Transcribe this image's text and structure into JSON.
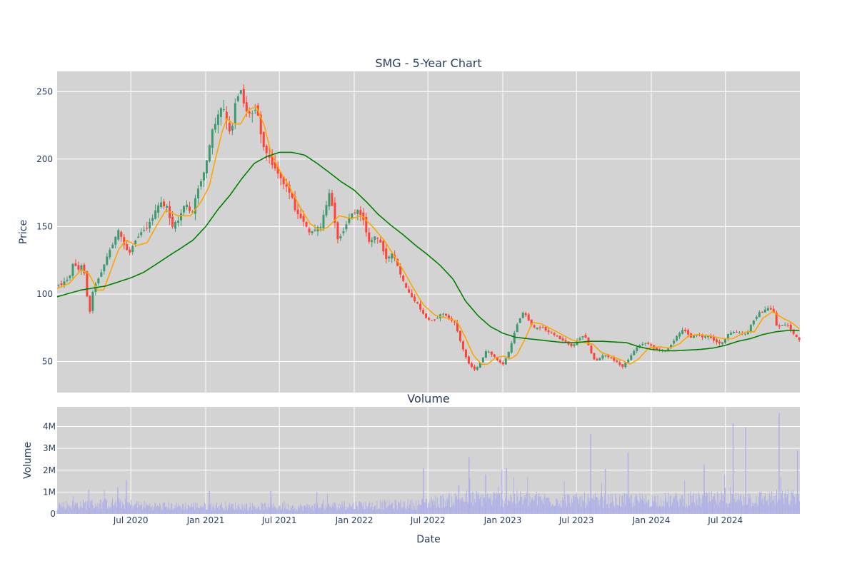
{
  "chart_data": [
    {
      "type": "candlestick",
      "title": "SMG - 5-Year Chart",
      "xlabel": "",
      "ylabel": "Price",
      "ylim": [
        27,
        265
      ],
      "yticks": [
        50,
        100,
        150,
        200,
        250
      ],
      "x_range": [
        "2020-01-02",
        "2024-12-31"
      ],
      "grid": true,
      "colors": {
        "up": "#3d9970",
        "down": "#ff4136",
        "ma20": "#ffa500",
        "ma200": "#008000",
        "background": "#d3d3d3",
        "grid": "#ffffff"
      },
      "series": [
        {
          "type": "candlestick"
        },
        {
          "type": "line",
          "color": "#ffa500"
        },
        {
          "type": "line",
          "color": "#008000"
        }
      ],
      "close_path": [
        [
          "2020-01-02",
          106
        ],
        [
          "2020-01-20",
          108
        ],
        [
          "2020-02-05",
          113
        ],
        [
          "2020-02-15",
          124
        ],
        [
          "2020-02-27",
          118
        ],
        [
          "2020-03-08",
          122
        ],
        [
          "2020-03-16",
          110
        ],
        [
          "2020-03-24",
          80
        ],
        [
          "2020-03-30",
          100
        ],
        [
          "2020-04-10",
          108
        ],
        [
          "2020-04-25",
          118
        ],
        [
          "2020-05-10",
          130
        ],
        [
          "2020-05-25",
          140
        ],
        [
          "2020-06-05",
          147
        ],
        [
          "2020-06-20",
          135
        ],
        [
          "2020-07-01",
          130
        ],
        [
          "2020-07-15",
          140
        ],
        [
          "2020-08-01",
          147
        ],
        [
          "2020-08-15",
          150
        ],
        [
          "2020-09-01",
          160
        ],
        [
          "2020-09-15",
          168
        ],
        [
          "2020-10-01",
          164
        ],
        [
          "2020-10-15",
          150
        ],
        [
          "2020-10-30",
          155
        ],
        [
          "2020-11-15",
          168
        ],
        [
          "2020-12-01",
          158
        ],
        [
          "2020-12-15",
          177
        ],
        [
          "2020-12-31",
          190
        ],
        [
          "2021-01-08",
          200
        ],
        [
          "2021-01-20",
          220
        ],
        [
          "2021-02-01",
          230
        ],
        [
          "2021-02-15",
          240
        ],
        [
          "2021-02-25",
          228
        ],
        [
          "2021-03-08",
          215
        ],
        [
          "2021-03-15",
          240
        ],
        [
          "2021-04-01",
          252
        ],
        [
          "2021-04-10",
          238
        ],
        [
          "2021-04-25",
          232
        ],
        [
          "2021-05-10",
          240
        ],
        [
          "2021-05-20",
          218
        ],
        [
          "2021-06-01",
          205
        ],
        [
          "2021-06-15",
          198
        ],
        [
          "2021-07-01",
          190
        ],
        [
          "2021-07-15",
          182
        ],
        [
          "2021-08-01",
          175
        ],
        [
          "2021-08-15",
          160
        ],
        [
          "2021-09-01",
          155
        ],
        [
          "2021-09-15",
          145
        ],
        [
          "2021-10-01",
          148
        ],
        [
          "2021-10-15",
          150
        ],
        [
          "2021-10-25",
          163
        ],
        [
          "2021-11-05",
          175
        ],
        [
          "2021-11-15",
          160
        ],
        [
          "2021-11-25",
          140
        ],
        [
          "2021-12-10",
          148
        ],
        [
          "2021-12-25",
          158
        ],
        [
          "2022-01-10",
          162
        ],
        [
          "2022-01-25",
          158
        ],
        [
          "2022-02-10",
          138
        ],
        [
          "2022-02-25",
          143
        ],
        [
          "2022-03-10",
          138
        ],
        [
          "2022-03-25",
          126
        ],
        [
          "2022-04-10",
          130
        ],
        [
          "2022-04-25",
          117
        ],
        [
          "2022-05-10",
          105
        ],
        [
          "2022-05-25",
          98
        ],
        [
          "2022-06-10",
          92
        ],
        [
          "2022-06-25",
          84
        ],
        [
          "2022-07-10",
          80
        ],
        [
          "2022-07-25",
          82
        ],
        [
          "2022-08-10",
          86
        ],
        [
          "2022-08-25",
          82
        ],
        [
          "2022-09-10",
          78
        ],
        [
          "2022-09-25",
          62
        ],
        [
          "2022-10-10",
          50
        ],
        [
          "2022-10-25",
          44
        ],
        [
          "2022-11-05",
          46
        ],
        [
          "2022-11-15",
          52
        ],
        [
          "2022-11-25",
          58
        ],
        [
          "2022-12-10",
          55
        ],
        [
          "2022-12-25",
          50
        ],
        [
          "2023-01-05",
          48
        ],
        [
          "2023-01-15",
          54
        ],
        [
          "2023-01-25",
          62
        ],
        [
          "2023-02-05",
          75
        ],
        [
          "2023-02-15",
          82
        ],
        [
          "2023-02-25",
          87
        ],
        [
          "2023-03-10",
          80
        ],
        [
          "2023-03-25",
          74
        ],
        [
          "2023-04-10",
          76
        ],
        [
          "2023-04-25",
          72
        ],
        [
          "2023-05-10",
          70
        ],
        [
          "2023-05-25",
          67
        ],
        [
          "2023-06-10",
          64
        ],
        [
          "2023-06-25",
          61
        ],
        [
          "2023-07-10",
          67
        ],
        [
          "2023-07-25",
          70
        ],
        [
          "2023-08-05",
          60
        ],
        [
          "2023-08-15",
          52
        ],
        [
          "2023-08-25",
          51
        ],
        [
          "2023-09-10",
          55
        ],
        [
          "2023-09-25",
          53
        ],
        [
          "2023-10-10",
          50
        ],
        [
          "2023-10-25",
          46
        ],
        [
          "2023-11-05",
          50
        ],
        [
          "2023-11-15",
          54
        ],
        [
          "2023-11-25",
          59
        ],
        [
          "2023-12-10",
          63
        ],
        [
          "2023-12-25",
          64
        ],
        [
          "2024-01-10",
          60
        ],
        [
          "2024-01-25",
          58
        ],
        [
          "2024-02-10",
          58
        ],
        [
          "2024-02-25",
          64
        ],
        [
          "2024-03-10",
          70
        ],
        [
          "2024-03-25",
          74
        ],
        [
          "2024-04-10",
          68
        ],
        [
          "2024-04-25",
          70
        ],
        [
          "2024-05-10",
          68
        ],
        [
          "2024-05-25",
          69
        ],
        [
          "2024-06-10",
          65
        ],
        [
          "2024-06-25",
          63
        ],
        [
          "2024-07-10",
          70
        ],
        [
          "2024-07-25",
          72
        ],
        [
          "2024-08-10",
          71
        ],
        [
          "2024-08-25",
          70
        ],
        [
          "2024-09-10",
          80
        ],
        [
          "2024-09-25",
          86
        ],
        [
          "2024-10-10",
          88
        ],
        [
          "2024-10-20",
          90
        ],
        [
          "2024-11-01",
          86
        ],
        [
          "2024-11-08",
          75
        ],
        [
          "2024-11-20",
          77
        ],
        [
          "2024-12-05",
          77
        ],
        [
          "2024-12-20",
          70
        ],
        [
          "2024-12-31",
          66
        ]
      ],
      "ma20_path": [
        [
          "2020-01-02",
          104
        ],
        [
          "2020-02-01",
          108
        ],
        [
          "2020-03-01",
          118
        ],
        [
          "2020-03-20",
          115
        ],
        [
          "2020-04-10",
          103
        ],
        [
          "2020-04-25",
          103
        ],
        [
          "2020-05-10",
          115
        ],
        [
          "2020-06-01",
          133
        ],
        [
          "2020-06-20",
          140
        ],
        [
          "2020-07-15",
          136
        ],
        [
          "2020-08-10",
          138
        ],
        [
          "2020-09-01",
          150
        ],
        [
          "2020-09-25",
          162
        ],
        [
          "2020-10-25",
          158
        ],
        [
          "2020-11-25",
          158
        ],
        [
          "2020-12-20",
          168
        ],
        [
          "2021-01-10",
          180
        ],
        [
          "2021-01-25",
          200
        ],
        [
          "2021-02-10",
          220
        ],
        [
          "2021-02-22",
          230
        ],
        [
          "2021-03-10",
          226
        ],
        [
          "2021-03-28",
          226
        ],
        [
          "2021-04-15",
          236
        ],
        [
          "2021-05-05",
          239
        ],
        [
          "2021-05-25",
          225
        ],
        [
          "2021-06-10",
          205
        ],
        [
          "2021-07-01",
          192
        ],
        [
          "2021-07-25",
          180
        ],
        [
          "2021-08-20",
          165
        ],
        [
          "2021-09-15",
          152
        ],
        [
          "2021-10-10",
          147
        ],
        [
          "2021-10-30",
          150
        ],
        [
          "2021-11-25",
          158
        ],
        [
          "2021-12-25",
          156
        ],
        [
          "2022-01-20",
          158
        ],
        [
          "2022-02-15",
          150
        ],
        [
          "2022-03-15",
          140
        ],
        [
          "2022-04-10",
          128
        ],
        [
          "2022-05-01",
          118
        ],
        [
          "2022-05-25",
          105
        ],
        [
          "2022-06-20",
          92
        ],
        [
          "2022-07-20",
          84
        ],
        [
          "2022-08-20",
          82
        ],
        [
          "2022-09-10",
          80
        ],
        [
          "2022-10-01",
          68
        ],
        [
          "2022-10-20",
          55
        ],
        [
          "2022-11-10",
          48
        ],
        [
          "2022-11-25",
          48
        ],
        [
          "2022-12-15",
          53
        ],
        [
          "2023-01-05",
          54
        ],
        [
          "2023-01-20",
          52
        ],
        [
          "2023-02-05",
          55
        ],
        [
          "2023-02-25",
          67
        ],
        [
          "2023-03-15",
          79
        ],
        [
          "2023-04-05",
          78
        ],
        [
          "2023-04-25",
          75
        ],
        [
          "2023-05-20",
          71
        ],
        [
          "2023-06-20",
          66
        ],
        [
          "2023-07-20",
          64
        ],
        [
          "2023-08-10",
          63
        ],
        [
          "2023-08-30",
          57
        ],
        [
          "2023-09-25",
          54
        ],
        [
          "2023-10-20",
          51
        ],
        [
          "2023-11-10",
          48
        ],
        [
          "2023-12-01",
          52
        ],
        [
          "2023-12-25",
          60
        ],
        [
          "2024-01-20",
          61
        ],
        [
          "2024-02-15",
          60
        ],
        [
          "2024-03-10",
          63
        ],
        [
          "2024-04-01",
          69
        ],
        [
          "2024-04-25",
          70
        ],
        [
          "2024-05-25",
          69
        ],
        [
          "2024-06-25",
          67
        ],
        [
          "2024-07-20",
          67
        ],
        [
          "2024-08-20",
          72
        ],
        [
          "2024-09-10",
          72
        ],
        [
          "2024-10-01",
          82
        ],
        [
          "2024-10-25",
          87
        ],
        [
          "2024-11-20",
          82
        ],
        [
          "2024-12-10",
          79
        ],
        [
          "2024-12-31",
          74
        ]
      ],
      "ma200_path": [
        [
          "2020-01-02",
          98
        ],
        [
          "2020-03-01",
          103
        ],
        [
          "2020-05-01",
          106
        ],
        [
          "2020-07-01",
          112
        ],
        [
          "2020-08-01",
          116
        ],
        [
          "2020-09-01",
          122
        ],
        [
          "2020-10-01",
          128
        ],
        [
          "2020-11-01",
          134
        ],
        [
          "2020-12-01",
          140
        ],
        [
          "2021-01-01",
          150
        ],
        [
          "2021-02-01",
          163
        ],
        [
          "2021-03-01",
          173
        ],
        [
          "2021-04-01",
          186
        ],
        [
          "2021-05-01",
          197
        ],
        [
          "2021-06-01",
          202
        ],
        [
          "2021-07-01",
          205
        ],
        [
          "2021-08-01",
          205
        ],
        [
          "2021-09-01",
          203
        ],
        [
          "2021-10-01",
          197
        ],
        [
          "2021-11-01",
          190
        ],
        [
          "2021-12-01",
          183
        ],
        [
          "2022-01-01",
          177
        ],
        [
          "2022-02-01",
          168
        ],
        [
          "2022-03-01",
          159
        ],
        [
          "2022-04-01",
          151
        ],
        [
          "2022-05-01",
          144
        ],
        [
          "2022-06-01",
          136
        ],
        [
          "2022-07-01",
          129
        ],
        [
          "2022-08-01",
          121
        ],
        [
          "2022-09-01",
          111
        ],
        [
          "2022-10-01",
          95
        ],
        [
          "2022-11-01",
          84
        ],
        [
          "2022-12-01",
          76
        ],
        [
          "2023-01-01",
          71
        ],
        [
          "2023-02-01",
          68
        ],
        [
          "2023-03-01",
          67
        ],
        [
          "2023-04-01",
          66
        ],
        [
          "2023-05-01",
          65
        ],
        [
          "2023-06-01",
          64
        ],
        [
          "2023-07-01",
          64
        ],
        [
          "2023-08-01",
          65
        ],
        [
          "2023-09-01",
          65
        ],
        [
          "2023-10-01",
          64.5
        ],
        [
          "2023-11-01",
          64
        ],
        [
          "2023-12-01",
          61
        ],
        [
          "2024-01-01",
          59
        ],
        [
          "2024-02-01",
          58
        ],
        [
          "2024-03-01",
          58
        ],
        [
          "2024-04-01",
          58.5
        ],
        [
          "2024-05-01",
          59
        ],
        [
          "2024-06-01",
          60
        ],
        [
          "2024-07-01",
          62
        ],
        [
          "2024-08-01",
          65
        ],
        [
          "2024-09-01",
          67
        ],
        [
          "2024-10-01",
          70
        ],
        [
          "2024-11-01",
          72
        ],
        [
          "2024-12-01",
          73
        ],
        [
          "2024-12-31",
          73
        ]
      ]
    },
    {
      "type": "bar",
      "title": "Volume",
      "xlabel": "Date",
      "ylabel": "Volume",
      "ylim": [
        0,
        4900000
      ],
      "yticks": [
        0,
        1000000,
        2000000,
        3000000,
        4000000
      ],
      "ytick_labels": [
        "0",
        "1M",
        "2M",
        "3M",
        "4M"
      ],
      "xticks": [
        "2020-07-01",
        "2021-01-01",
        "2021-07-01",
        "2022-01-01",
        "2022-07-01",
        "2023-01-01",
        "2023-07-01",
        "2024-01-01",
        "2024-07-01"
      ],
      "xtick_labels": [
        "Jul 2020",
        "Jan 2021",
        "Jul 2021",
        "Jan 2022",
        "Jul 2022",
        "Jan 2023",
        "Jul 2023",
        "Jan 2024",
        "Jul 2024"
      ],
      "colors": {
        "bar": "#b0b0e8",
        "background": "#d3d3d3",
        "grid": "#ffffff"
      },
      "baseline_path": [
        [
          "2020-01-02",
          500000
        ],
        [
          "2020-06-01",
          600000
        ],
        [
          "2020-09-01",
          450000
        ],
        [
          "2021-03-01",
          450000
        ],
        [
          "2021-09-01",
          400000
        ],
        [
          "2022-01-01",
          500000
        ],
        [
          "2022-06-01",
          550000
        ],
        [
          "2022-10-01",
          900000
        ],
        [
          "2023-03-01",
          850000
        ],
        [
          "2023-09-01",
          750000
        ],
        [
          "2024-03-01",
          800000
        ],
        [
          "2024-09-01",
          850000
        ],
        [
          "2024-12-31",
          950000
        ]
      ],
      "spikes": [
        [
          "2020-03-20",
          1100000
        ],
        [
          "2020-05-30",
          1200000
        ],
        [
          "2020-06-20",
          1550000
        ],
        [
          "2021-01-10",
          1050000
        ],
        [
          "2021-06-10",
          1050000
        ],
        [
          "2021-10-01",
          1000000
        ],
        [
          "2022-06-20",
          2100000
        ],
        [
          "2022-09-15",
          1300000
        ],
        [
          "2022-10-10",
          2600000
        ],
        [
          "2022-11-20",
          1800000
        ],
        [
          "2022-12-30",
          2000000
        ],
        [
          "2023-01-10",
          2100000
        ],
        [
          "2023-08-05",
          3650000
        ],
        [
          "2023-09-10",
          2050000
        ],
        [
          "2023-11-05",
          2800000
        ],
        [
          "2024-05-10",
          2250000
        ],
        [
          "2024-07-20",
          4150000
        ],
        [
          "2024-08-20",
          3950000
        ],
        [
          "2024-11-10",
          4600000
        ],
        [
          "2024-12-25",
          2900000
        ]
      ]
    }
  ]
}
